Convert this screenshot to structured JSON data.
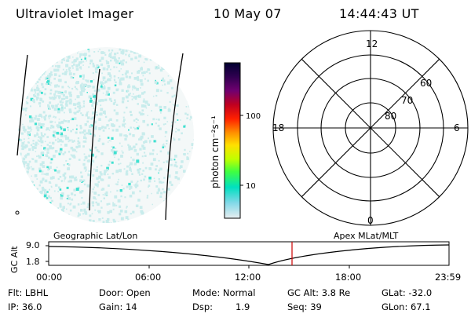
{
  "header": {
    "title": "Ultraviolet Imager",
    "date": "10 May 07",
    "time": "14:44:43 UT"
  },
  "colorbar": {
    "unit_label": "photon cm⁻²s⁻¹",
    "ticks": [
      "100",
      "10"
    ]
  },
  "polar_plot": {
    "mlt_labels": {
      "top": "12",
      "left": "18",
      "right": "6",
      "bottom": "0"
    },
    "lat_labels": [
      "60",
      "70",
      "80"
    ]
  },
  "altitude_panel": {
    "axis_label": "GC Alt",
    "ticks": [
      "9.0",
      "1.8"
    ],
    "left_caption": "Geographic Lat/Lon",
    "right_caption": "Apex MLat/MLT",
    "time_ticks": [
      "00:00",
      "06:00",
      "12:00",
      "18:00",
      "23:59"
    ],
    "marker_time": "14:44:43",
    "marker_color": "#cc0000"
  },
  "info": {
    "row1": {
      "filter": "Flt: LBHL",
      "door": "Door: Open",
      "mode": "Mode: Normal",
      "gc_alt": "GC Alt: 3.8 Re",
      "glat": "GLat: -32.0"
    },
    "row2": {
      "ip": "IP: 36.0",
      "gain": "Gain: 14",
      "dsp_label": "Dsp:",
      "dsp_value": "1.9",
      "seq": "Seq: 39",
      "glon": "GLon: 67.1"
    }
  },
  "colors": {
    "speckle_main": "#40e0d0",
    "speckle_faint": "#c8ecec",
    "colorbar": [
      "#000030",
      "#300050",
      "#700070",
      "#c00020",
      "#ff2000",
      "#ff9000",
      "#ffe000",
      "#c0ff00",
      "#40ff40",
      "#00e0c0",
      "#80d8e8",
      "#e8eef0"
    ]
  }
}
